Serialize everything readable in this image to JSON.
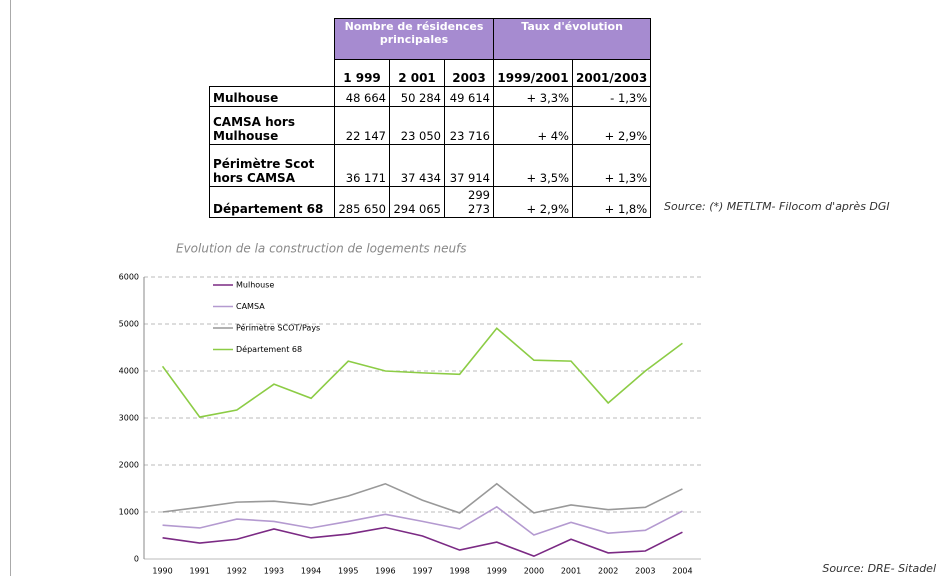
{
  "table": {
    "header_groups": [
      "Nombre de résidences principales",
      "Taux d'évolution"
    ],
    "columns": [
      "1 999",
      "2 001",
      "2003",
      "1999/2001",
      "2001/2003"
    ],
    "rows": [
      [
        "Mulhouse",
        "48 664",
        "50 284",
        "49 614",
        "+ 3,3%",
        "- 1,3%"
      ],
      [
        "CAMSA hors Mulhouse",
        "22 147",
        "23 050",
        "23 716",
        "+ 4%",
        "+ 2,9%"
      ],
      [
        "Périmètre Scot hors CAMSA",
        "36 171",
        "37 434",
        "37 914",
        "+ 3,5%",
        "+ 1,3%"
      ],
      [
        "Département 68",
        "285 650",
        "294 065",
        "299 273",
        "+ 2,9%",
        "+ 1,8%"
      ]
    ],
    "source": "Source: (*) METLTM- Filocom d'après DGI"
  },
  "chart_data": {
    "type": "line",
    "title": "Evolution de la construction de logements neufs",
    "categories": [
      "1990",
      "1991",
      "1992",
      "1993",
      "1994",
      "1995",
      "1996",
      "1997",
      "1998",
      "1999",
      "2000",
      "2001",
      "2002",
      "2003",
      "2004"
    ],
    "series": [
      {
        "name": "Mulhouse",
        "color": "#7b2a84",
        "values": [
          450,
          340,
          420,
          640,
          450,
          530,
          670,
          490,
          190,
          360,
          60,
          420,
          130,
          170,
          570
        ]
      },
      {
        "name": "CAMSA",
        "color": "#b49ad0",
        "values": [
          720,
          660,
          850,
          800,
          660,
          800,
          950,
          800,
          640,
          1110,
          510,
          780,
          550,
          610,
          1020
        ]
      },
      {
        "name": "Périmètre SCOT/Pays",
        "color": "#999999",
        "values": [
          1000,
          1100,
          1210,
          1230,
          1150,
          1340,
          1600,
          1250,
          980,
          1600,
          980,
          1150,
          1050,
          1100,
          1490
        ]
      },
      {
        "name": "Département 68",
        "color": "#8ccc45",
        "values": [
          4100,
          3020,
          3170,
          3720,
          3420,
          4210,
          4000,
          3960,
          3930,
          4910,
          4230,
          4210,
          3320,
          4000,
          4590
        ]
      }
    ],
    "ylim": [
      0,
      6000
    ],
    "yticks": [
      0,
      1000,
      2000,
      3000,
      4000,
      5000,
      6000
    ],
    "grid": true,
    "legend": "upper-left",
    "source": "Source: DRE- Sitadel"
  }
}
